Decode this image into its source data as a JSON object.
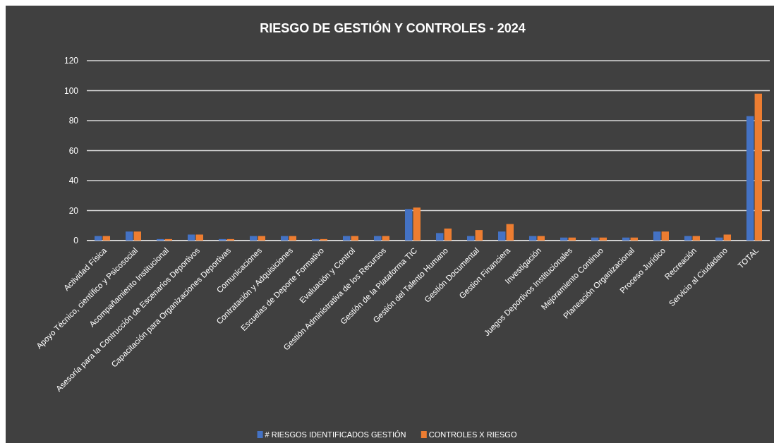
{
  "chart_data": {
    "type": "bar",
    "title": "RIESGO DE GESTIÓN Y CONTROLES - 2024",
    "categories": [
      "Actividad Física",
      "Apoyo Técnico, científico y Psicosocial",
      "Acompañamiento Institucional",
      "Asesoría para la Contrucción de Escenarios Deportivos",
      "Capacitación para Organizaciones Deportivas",
      "Comunicaciones",
      "Contratación y Adquisiciones",
      "Escuelas de Deporte Formativo",
      "Evaluación y Control",
      "Gestión Administrativa de los Recursos",
      "Gestión de la Plataforma TIC",
      "Gestión del Talento Humano",
      "Gestión Documental",
      "Gestion Financiera",
      "Investigación",
      "Juegos Deportivos Institucionales",
      "Mejoramiento Continuo",
      "Planeación Organizacional",
      "Proceso Jurídico",
      "Recreación",
      "Servicio al Ciudadano",
      "TOTAL"
    ],
    "series": [
      {
        "name": "# RIESGOS IDENTIFICADOS GESTIÓN",
        "color": "#4472c4",
        "values": [
          3,
          6,
          1,
          4,
          1,
          3,
          3,
          1,
          3,
          3,
          21,
          5,
          3,
          6,
          3,
          2,
          2,
          2,
          6,
          3,
          2,
          83
        ]
      },
      {
        "name": "CONTROLES X RIESGO",
        "color": "#ed7d31",
        "values": [
          3,
          6,
          1,
          4,
          1,
          3,
          3,
          1,
          3,
          3,
          22,
          8,
          7,
          11,
          3,
          2,
          2,
          2,
          6,
          3,
          4,
          98
        ]
      }
    ],
    "ylim": [
      0,
      120
    ],
    "yticks": [
      0,
      20,
      40,
      60,
      80,
      100,
      120
    ],
    "grid": "y",
    "legend": "bottom"
  }
}
